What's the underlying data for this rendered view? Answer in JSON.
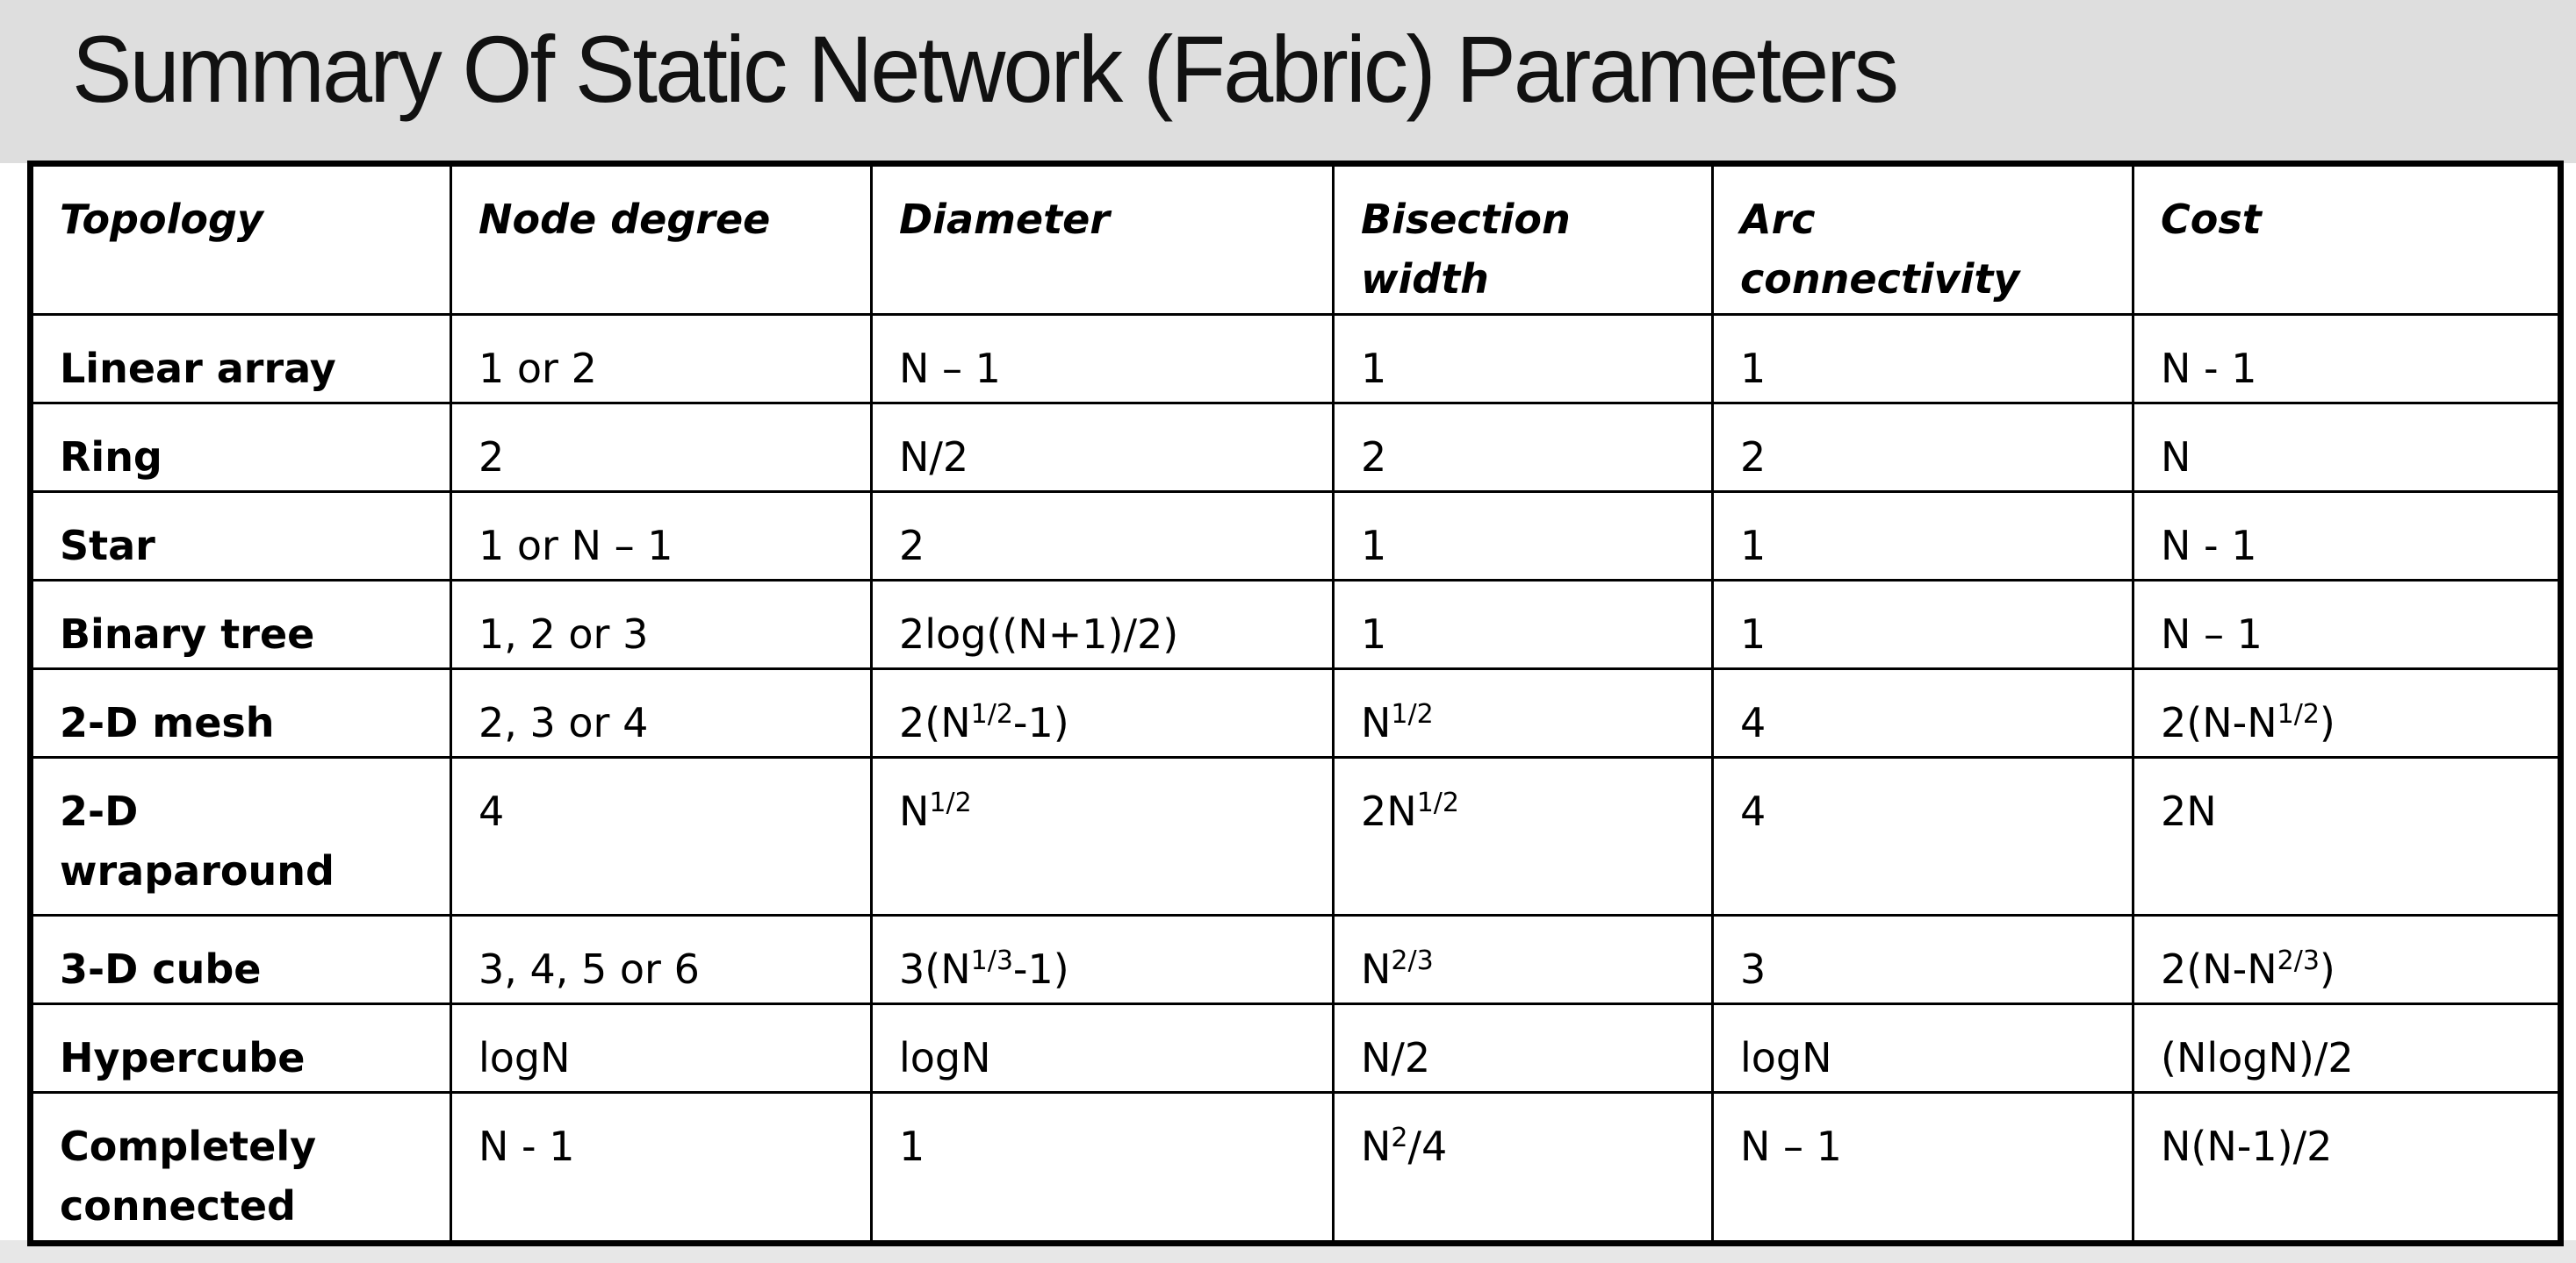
{
  "slide": {
    "title": "Summary Of Static Network (Fabric) Parameters"
  },
  "table": {
    "headers": [
      "Topology",
      "Node degree",
      "Diameter",
      "Bisection width",
      "Arc connectivity",
      "Cost"
    ],
    "rows": [
      [
        "Linear array",
        "1 or 2",
        "N – 1",
        "1",
        "1",
        "N - 1"
      ],
      [
        "Ring",
        "2",
        "N/2",
        "2",
        "2",
        "N"
      ],
      [
        "Star",
        "1 or N – 1",
        "2",
        "1",
        "1",
        "N - 1"
      ],
      [
        "Binary tree",
        "1, 2 or 3",
        "2log((N+1)/2)",
        "1",
        "1",
        "N – 1"
      ],
      [
        "2-D mesh",
        "2, 3 or 4",
        "2(N^(1/2)-1)",
        "N^(1/2)",
        "4",
        "2(N-N^(1/2))"
      ],
      [
        "2-D wraparound",
        "4",
        "N^(1/2)",
        "2N^(1/2)",
        "4",
        "2N"
      ],
      [
        "3-D cube",
        "3, 4, 5 or 6",
        "3(N^(1/3)-1)",
        "N^(2/3)",
        "3",
        "2(N-N^(2/3))"
      ],
      [
        "Hypercube",
        "logN",
        "logN",
        "N/2",
        "logN",
        "(NlogN)/2"
      ],
      [
        "Completely connected",
        "N - 1",
        "1",
        "N^2/4",
        "N – 1",
        "N(N-1)/2"
      ]
    ]
  }
}
